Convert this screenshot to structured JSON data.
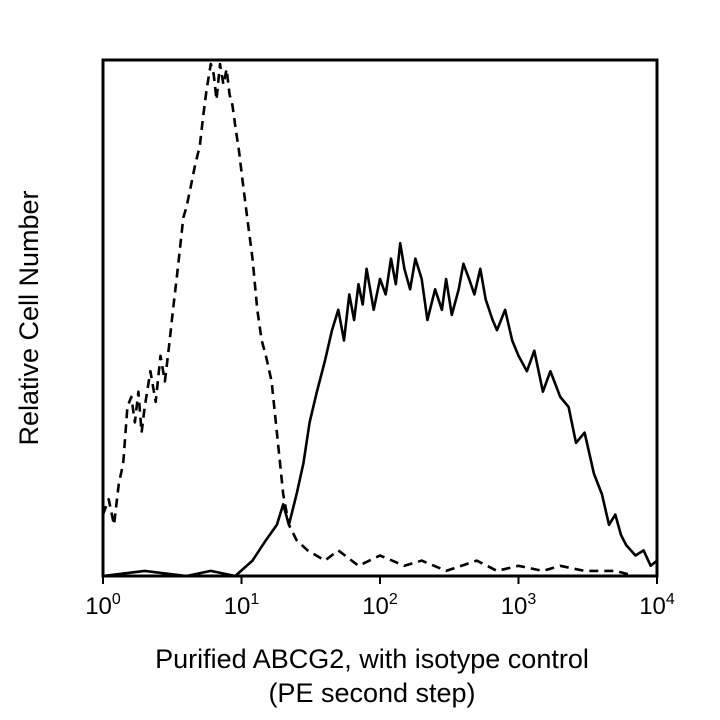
{
  "chart_data": {
    "type": "line",
    "title": "",
    "xlabel": [
      "Purified ABCG2, with isotype control",
      "(PE second step)"
    ],
    "ylabel": "Relative Cell Number",
    "x_scale": "log",
    "xlim": [
      1,
      10000
    ],
    "ylim": [
      0,
      100
    ],
    "grid": false,
    "x_ticks": [
      {
        "value": 1,
        "base": "10",
        "exp": "0"
      },
      {
        "value": 10,
        "base": "10",
        "exp": "1"
      },
      {
        "value": 100,
        "base": "10",
        "exp": "2"
      },
      {
        "value": 1000,
        "base": "10",
        "exp": "3"
      },
      {
        "value": 10000,
        "base": "10",
        "exp": "4"
      }
    ],
    "series": [
      {
        "style": "dashed",
        "color": "#000000",
        "x": [
          1.0,
          1.1,
          1.2,
          1.3,
          1.4,
          1.5,
          1.6,
          1.7,
          1.8,
          1.9,
          2.0,
          2.2,
          2.4,
          2.6,
          2.8,
          3.0,
          3.2,
          3.4,
          3.6,
          3.8,
          4.0,
          4.3,
          4.6,
          5.0,
          5.3,
          5.6,
          6.0,
          6.3,
          6.6,
          7.0,
          7.4,
          7.8,
          8.2,
          8.6,
          9.0,
          9.6,
          10.2,
          11.0,
          12.0,
          13.0,
          14.0,
          15.0,
          16.5,
          18.0,
          20.0,
          22.0,
          25.0,
          30.0,
          40.0,
          50.0,
          70.0,
          100.0,
          150.0,
          200.0,
          300.0,
          500.0,
          700.0,
          1000.0,
          1500.0,
          2000.0,
          3000.0,
          5000.0,
          7000.0,
          10000.0
        ],
        "y": [
          12,
          15,
          10,
          18,
          22,
          33,
          35,
          30,
          36,
          28,
          33,
          40,
          34,
          43,
          38,
          45,
          52,
          58,
          64,
          70,
          72,
          76,
          80,
          84,
          90,
          95,
          100,
          98,
          93,
          100,
          96,
          99,
          94,
          92,
          88,
          83,
          77,
          70,
          62,
          52,
          46,
          43,
          38,
          28,
          16,
          10,
          7,
          5,
          3,
          5,
          2,
          4,
          2,
          3,
          1,
          3,
          1,
          2,
          1,
          2,
          1,
          1,
          0,
          0
        ]
      },
      {
        "style": "solid",
        "color": "#000000",
        "x": [
          1.0,
          2.0,
          4.0,
          6.0,
          9.0,
          12.0,
          15.0,
          18.0,
          20.0,
          22.0,
          25.0,
          28.0,
          31.0,
          35.0,
          40.0,
          45.0,
          50.0,
          55.0,
          60.0,
          65.0,
          70.0,
          75.0,
          80.0,
          90.0,
          100.0,
          110.0,
          120.0,
          130.0,
          140.0,
          150.0,
          165.0,
          180.0,
          200.0,
          220.0,
          250.0,
          280.0,
          300.0,
          330.0,
          370.0,
          400.0,
          440.0,
          480.0,
          530.0,
          580.0,
          650.0,
          700.0,
          800.0,
          900.0,
          1000.0,
          1150.0,
          1300.0,
          1500.0,
          1700.0,
          2000.0,
          2300.0,
          2600.0,
          3000.0,
          3500.0,
          4000.0,
          4500.0,
          5000.0,
          5500.0,
          6000.0,
          7000.0,
          8000.0,
          9000.0,
          10000.0
        ],
        "y": [
          0,
          1,
          0,
          1,
          0,
          3,
          7,
          10,
          14,
          10,
          16,
          22,
          30,
          36,
          42,
          48,
          52,
          46,
          55,
          50,
          57,
          53,
          60,
          52,
          58,
          55,
          62,
          57,
          65,
          60,
          56,
          62,
          58,
          50,
          56,
          52,
          58,
          51,
          56,
          61,
          58,
          55,
          60,
          54,
          50,
          48,
          52,
          46,
          43,
          40,
          44,
          36,
          40,
          35,
          33,
          26,
          28,
          20,
          16,
          10,
          12,
          8,
          6,
          4,
          5,
          2,
          3
        ]
      }
    ]
  }
}
